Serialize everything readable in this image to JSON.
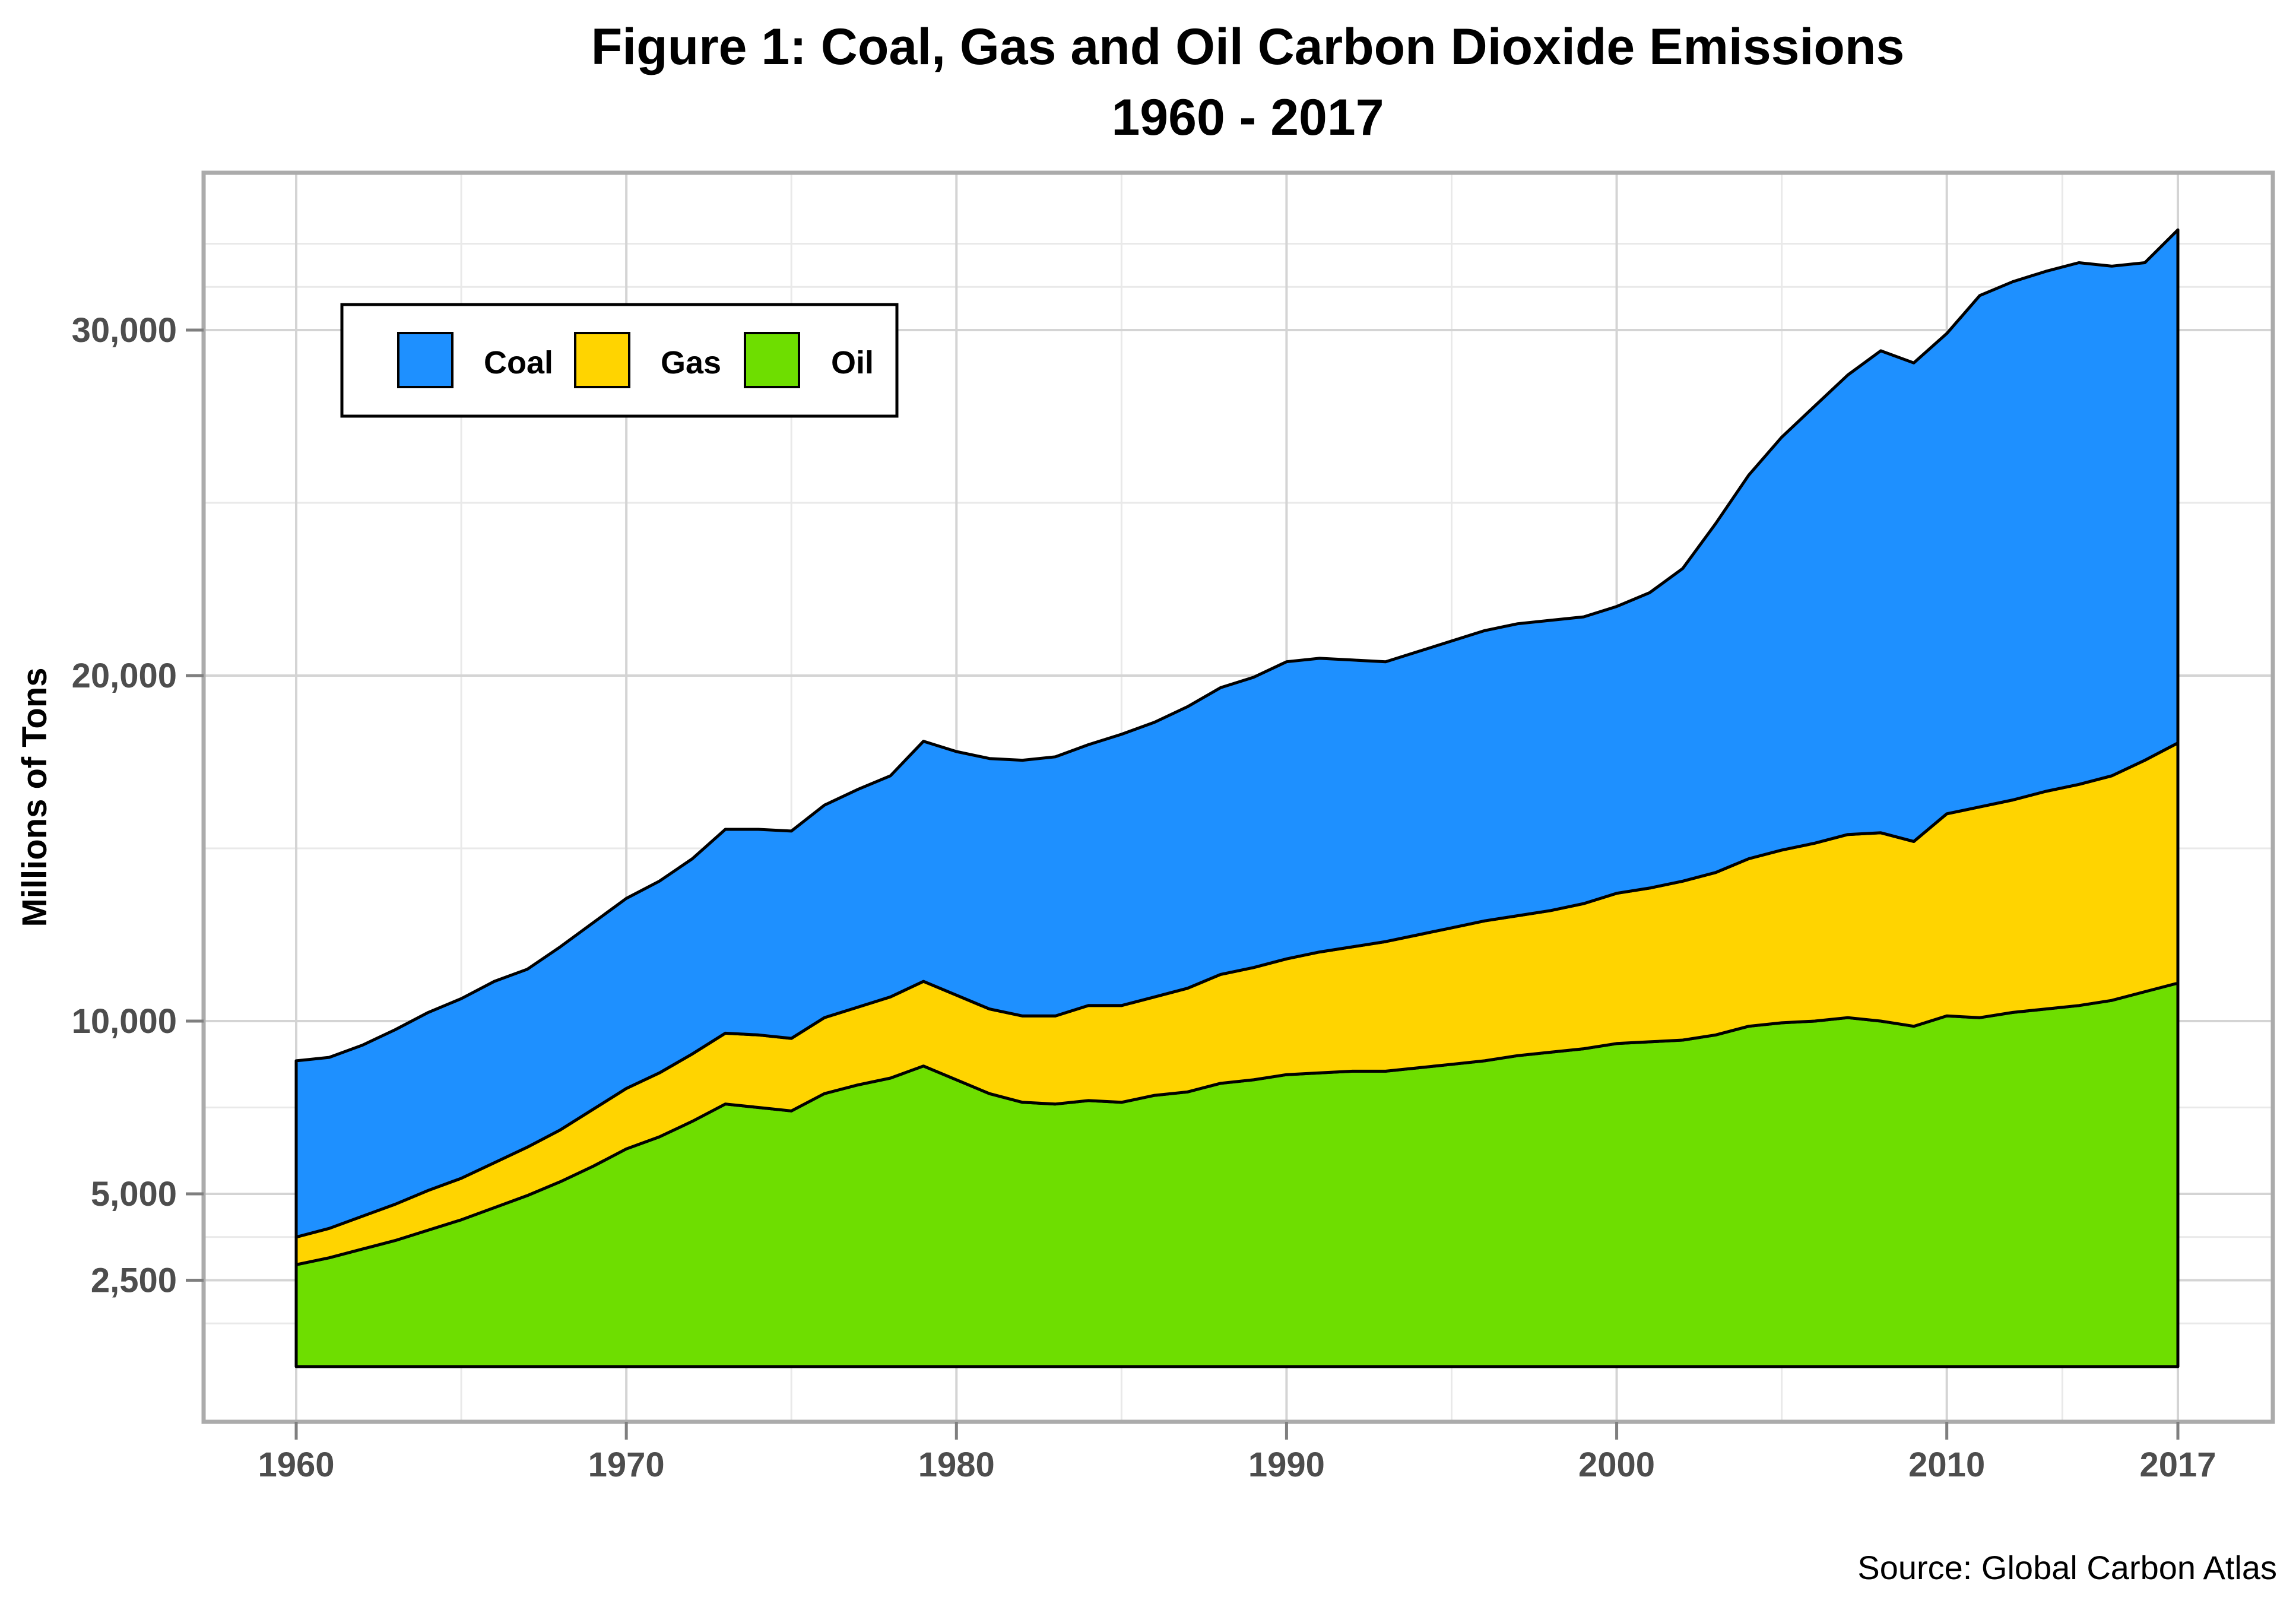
{
  "title": {
    "line1": "Figure 1: Coal, Gas and Oil Carbon Dioxide Emissions",
    "line2": "1960 - 2017"
  },
  "source": "Source: Global Carbon Atlas",
  "legend": [
    {
      "label": "Coal",
      "color": "#1E90FF"
    },
    {
      "label": "Gas",
      "color": "#FFD400"
    },
    {
      "label": "Oil",
      "color": "#6EDE00"
    }
  ],
  "y_axis": {
    "label": "Millions of Tons",
    "tick_values": [
      2500,
      5000,
      10000,
      20000,
      30000
    ],
    "tick_labels": [
      "2,500",
      "5,000",
      "10,000",
      "20,000",
      "30,000"
    ],
    "minor_values": [
      1250,
      3750,
      7500,
      15000,
      25000,
      31250,
      32500
    ]
  },
  "x_axis": {
    "tick_values": [
      1960,
      1970,
      1980,
      1990,
      2000,
      2010,
      2017
    ],
    "tick_labels": [
      "1960",
      "1970",
      "1980",
      "1990",
      "2000",
      "2010",
      "2017"
    ],
    "minor_values": [
      1965,
      1975,
      1985,
      1995,
      2005,
      2013.5
    ]
  },
  "chart_data": {
    "type": "area",
    "stacked": true,
    "title": "Figure 1: Coal, Gas and Oil Carbon Dioxide Emissions 1960 - 2017",
    "xlabel": "",
    "ylabel": "Millions of Tons",
    "xlim": [
      1960,
      2017
    ],
    "ylim": [
      0,
      34500
    ],
    "grid": true,
    "legend_position": "top-left-inset",
    "legend_order": [
      "Coal",
      "Gas",
      "Oil"
    ],
    "stack_order_bottom_to_top": [
      "Oil",
      "Gas",
      "Coal"
    ],
    "units": "Millions of Tons of CO2 (values estimated from chart)",
    "x": [
      1960,
      1961,
      1962,
      1963,
      1964,
      1965,
      1966,
      1967,
      1968,
      1969,
      1970,
      1971,
      1972,
      1973,
      1974,
      1975,
      1976,
      1977,
      1978,
      1979,
      1980,
      1981,
      1982,
      1983,
      1984,
      1985,
      1986,
      1987,
      1988,
      1989,
      1990,
      1991,
      1992,
      1993,
      1994,
      1995,
      1996,
      1997,
      1998,
      1999,
      2000,
      2001,
      2002,
      2003,
      2004,
      2005,
      2006,
      2007,
      2008,
      2009,
      2010,
      2011,
      2012,
      2013,
      2014,
      2015,
      2016,
      2017
    ],
    "series": [
      {
        "name": "Oil",
        "color": "#6EDE00",
        "values": [
          2950,
          3150,
          3400,
          3650,
          3950,
          4250,
          4600,
          4950,
          5350,
          5800,
          6300,
          6650,
          7100,
          7600,
          7500,
          7400,
          7900,
          8150,
          8350,
          8700,
          8300,
          7900,
          7650,
          7600,
          7700,
          7650,
          7850,
          7950,
          8200,
          8300,
          8450,
          8500,
          8550,
          8550,
          8650,
          8750,
          8850,
          9000,
          9100,
          9200,
          9350,
          9400,
          9450,
          9600,
          9850,
          9950,
          10000,
          10100,
          10000,
          9850,
          10150,
          10100,
          10250,
          10350,
          10450,
          10600,
          10850,
          11100
        ]
      },
      {
        "name": "Gas",
        "color": "#FFD400",
        "values": [
          800,
          850,
          950,
          1050,
          1150,
          1200,
          1300,
          1400,
          1500,
          1650,
          1750,
          1850,
          1950,
          2050,
          2100,
          2100,
          2200,
          2250,
          2350,
          2450,
          2450,
          2450,
          2500,
          2550,
          2750,
          2800,
          2850,
          3000,
          3150,
          3250,
          3350,
          3500,
          3600,
          3750,
          3850,
          3950,
          4050,
          4050,
          4100,
          4200,
          4350,
          4450,
          4600,
          4700,
          4850,
          5000,
          5150,
          5300,
          5450,
          5350,
          5850,
          6100,
          6150,
          6300,
          6400,
          6500,
          6700,
          6950
        ]
      },
      {
        "name": "Coal",
        "color": "#1E90FF",
        "values": [
          5100,
          4950,
          4950,
          5050,
          5150,
          5200,
          5250,
          5150,
          5300,
          5400,
          5500,
          5550,
          5650,
          5900,
          5950,
          6000,
          6150,
          6300,
          6400,
          6950,
          7050,
          7250,
          7400,
          7500,
          7550,
          7850,
          7950,
          8150,
          8300,
          8400,
          8600,
          8500,
          8300,
          8100,
          8200,
          8300,
          8400,
          8450,
          8400,
          8300,
          8300,
          8550,
          9050,
          10100,
          11100,
          11950,
          12650,
          13300,
          13950,
          13850,
          13900,
          14800,
          15000,
          15050,
          15100,
          14750,
          14400,
          14850
        ]
      }
    ]
  },
  "style": {
    "panel_border_color": "#ababab",
    "grid_major_color": "#d4d4d4",
    "grid_minor_color": "#e9e9e9",
    "area_outline_color": "#000000",
    "tick_color": "#7f7f7f",
    "tick_label_color": "#4d4d4d"
  }
}
